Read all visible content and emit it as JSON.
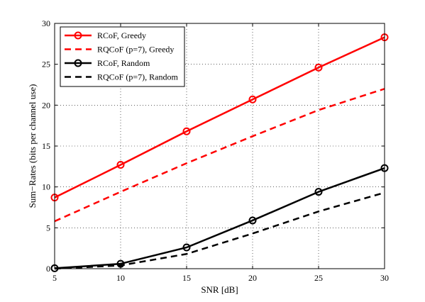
{
  "chart_data": {
    "type": "line",
    "xlabel": "SNR [dB]",
    "ylabel": "Sum−Rates (bits per channel use)",
    "xlim": [
      5,
      30
    ],
    "ylim": [
      0,
      30
    ],
    "xticks": [
      5,
      10,
      15,
      20,
      25,
      30
    ],
    "yticks": [
      0,
      5,
      10,
      15,
      20,
      25,
      30
    ],
    "grid": true,
    "legend_position": "top-left",
    "x": [
      5,
      10,
      15,
      20,
      25,
      30
    ],
    "series": [
      {
        "name": "RCoF, Greedy",
        "color": "#ff0000",
        "dash": "solid",
        "marker": "circle",
        "values": [
          8.7,
          12.7,
          16.8,
          20.7,
          24.6,
          28.3
        ]
      },
      {
        "name": "RQCoF (p=7), Greedy",
        "color": "#ff0000",
        "dash": "dashed",
        "marker": "none",
        "values": [
          5.8,
          9.4,
          12.9,
          16.2,
          19.4,
          22.0
        ]
      },
      {
        "name": "RCoF, Random",
        "color": "#000000",
        "dash": "solid",
        "marker": "circle",
        "values": [
          0.05,
          0.6,
          2.6,
          5.9,
          9.4,
          12.3
        ]
      },
      {
        "name": "RQCoF (p=7), Random",
        "color": "#000000",
        "dash": "dashed",
        "marker": "none",
        "values": [
          0.0,
          0.4,
          1.8,
          4.3,
          7.0,
          9.3
        ]
      }
    ]
  }
}
